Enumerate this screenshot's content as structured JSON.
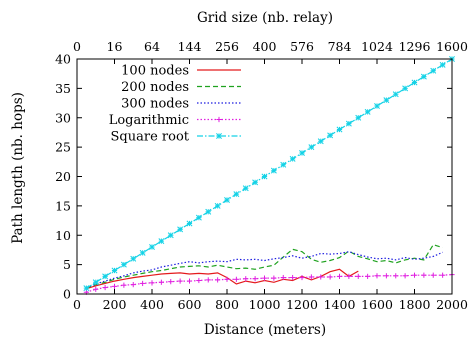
{
  "chart_data": {
    "type": "line",
    "title": "",
    "xlabel": "Distance (meters)",
    "ylabel": "Path length (nb. hops)",
    "x2label": "Grid size (nb. relay)",
    "xlim": [
      0,
      2000
    ],
    "ylim": [
      0,
      40
    ],
    "xticks": [
      0,
      200,
      400,
      600,
      800,
      1000,
      1200,
      1400,
      1600,
      1800,
      2000
    ],
    "yticks": [
      0,
      5,
      10,
      15,
      20,
      25,
      30,
      35,
      40
    ],
    "x2ticks": [
      {
        "at": 0,
        "label": "0"
      },
      {
        "at": 200,
        "label": "16"
      },
      {
        "at": 400,
        "label": "64"
      },
      {
        "at": 600,
        "label": "144"
      },
      {
        "at": 800,
        "label": "256"
      },
      {
        "at": 1000,
        "label": "400"
      },
      {
        "at": 1200,
        "label": "576"
      },
      {
        "at": 1400,
        "label": "784"
      },
      {
        "at": 1600,
        "label": "1024"
      },
      {
        "at": 1800,
        "label": "1296"
      },
      {
        "at": 2000,
        "label": "1600"
      }
    ],
    "grid": false,
    "legend_position": "top-left",
    "series": [
      {
        "name": "100 nodes",
        "color": "#e41a1c",
        "style": "solid",
        "x": [
          50,
          100,
          150,
          200,
          250,
          300,
          350,
          400,
          450,
          500,
          550,
          600,
          650,
          700,
          750,
          800,
          850,
          900,
          950,
          1000,
          1050,
          1100,
          1150,
          1200,
          1250,
          1300,
          1350,
          1400,
          1450,
          1500
        ],
        "values": [
          0.9,
          1.4,
          1.8,
          2.2,
          2.5,
          2.8,
          3.0,
          3.2,
          3.4,
          3.5,
          3.6,
          3.4,
          3.5,
          3.4,
          3.6,
          2.8,
          1.7,
          2.2,
          1.9,
          2.3,
          2.0,
          2.5,
          2.3,
          3.0,
          2.4,
          3.0,
          3.8,
          4.2,
          3.0,
          3.9
        ]
      },
      {
        "name": "200 nodes",
        "color": "#1fa21f",
        "style": "dashed",
        "x": [
          50,
          100,
          150,
          200,
          250,
          300,
          350,
          400,
          450,
          500,
          550,
          600,
          650,
          700,
          750,
          800,
          850,
          900,
          950,
          1000,
          1050,
          1100,
          1150,
          1200,
          1250,
          1300,
          1350,
          1400,
          1450,
          1500,
          1550,
          1600,
          1650,
          1700,
          1750,
          1800,
          1850,
          1900,
          1950
        ],
        "values": [
          1.0,
          1.6,
          2.0,
          2.5,
          2.9,
          3.2,
          3.5,
          3.8,
          4.0,
          4.3,
          4.6,
          4.7,
          4.8,
          4.6,
          4.9,
          4.6,
          4.3,
          4.4,
          4.2,
          4.6,
          4.9,
          6.3,
          7.6,
          7.2,
          5.9,
          5.4,
          5.7,
          6.2,
          7.3,
          6.4,
          6.0,
          5.5,
          5.7,
          5.3,
          5.8,
          6.1,
          5.8,
          8.4,
          7.9
        ]
      },
      {
        "name": "300 nodes",
        "color": "#1c1ce0",
        "style": "dotted",
        "x": [
          50,
          100,
          150,
          200,
          250,
          300,
          350,
          400,
          450,
          500,
          550,
          600,
          650,
          700,
          750,
          800,
          850,
          900,
          950,
          1000,
          1050,
          1100,
          1150,
          1200,
          1250,
          1300,
          1350,
          1400,
          1450,
          1500,
          1550,
          1600,
          1650,
          1700,
          1750,
          1800,
          1850,
          1900,
          1950
        ],
        "values": [
          1.1,
          1.7,
          2.2,
          2.7,
          3.1,
          3.6,
          3.9,
          4.1,
          4.6,
          4.9,
          5.2,
          5.5,
          5.3,
          5.5,
          5.6,
          5.5,
          5.9,
          5.8,
          5.9,
          5.7,
          6.0,
          6.2,
          6.5,
          6.1,
          6.4,
          6.9,
          6.8,
          6.9,
          7.2,
          6.7,
          6.3,
          6.0,
          6.1,
          5.8,
          6.2,
          5.9,
          6.1,
          6.4,
          7.1
        ]
      },
      {
        "name": "Logarithmic",
        "color": "#e020e0",
        "style": "dotted",
        "marker": "plus",
        "x": [
          50,
          100,
          150,
          200,
          250,
          300,
          350,
          400,
          450,
          500,
          550,
          600,
          650,
          700,
          750,
          800,
          850,
          900,
          950,
          1000,
          1050,
          1100,
          1150,
          1200,
          1250,
          1300,
          1350,
          1400,
          1450,
          1500,
          1550,
          1600,
          1650,
          1700,
          1750,
          1800,
          1850,
          1900,
          1950,
          2000
        ],
        "values": [
          0.3,
          0.8,
          1.1,
          1.3,
          1.5,
          1.6,
          1.8,
          1.9,
          2.0,
          2.1,
          2.2,
          2.2,
          2.3,
          2.4,
          2.4,
          2.5,
          2.5,
          2.6,
          2.6,
          2.7,
          2.7,
          2.8,
          2.8,
          2.8,
          2.9,
          2.9,
          2.9,
          3.0,
          3.0,
          3.0,
          3.0,
          3.1,
          3.1,
          3.1,
          3.1,
          3.2,
          3.2,
          3.2,
          3.2,
          3.3
        ]
      },
      {
        "name": "Square root",
        "color": "#14d2e6",
        "style": "dashdot",
        "marker": "star",
        "x": [
          50,
          100,
          150,
          200,
          250,
          300,
          350,
          400,
          450,
          500,
          550,
          600,
          650,
          700,
          750,
          800,
          850,
          900,
          950,
          1000,
          1050,
          1100,
          1150,
          1200,
          1250,
          1300,
          1350,
          1400,
          1450,
          1500,
          1550,
          1600,
          1650,
          1700,
          1750,
          1800,
          1850,
          1900,
          1950,
          2000
        ],
        "values": [
          1,
          2,
          3,
          4,
          5,
          6,
          7,
          8,
          9,
          10,
          11,
          12,
          13,
          14,
          15,
          16,
          17,
          18,
          19,
          20,
          21,
          22,
          23,
          24,
          25,
          26,
          27,
          28,
          29,
          30,
          31,
          32,
          33,
          34,
          35,
          36,
          37,
          38,
          39,
          40
        ]
      }
    ]
  }
}
